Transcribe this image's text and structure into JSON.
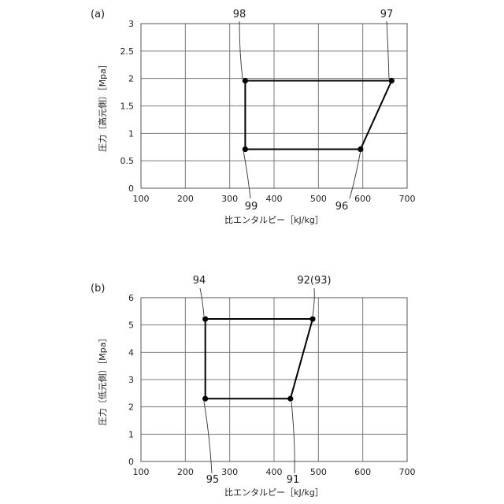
{
  "chart_data": [
    {
      "type": "line",
      "panel_label": "(a)",
      "xlabel": "比エンタルピー［kJ/kg］",
      "ylabel": "圧力〔高元側〕［Mpa］",
      "xlim": [
        100,
        700
      ],
      "ylim": [
        0,
        3
      ],
      "x_ticks": [
        100,
        200,
        300,
        400,
        500,
        600,
        700
      ],
      "y_ticks": [
        0,
        0.5,
        1,
        1.5,
        2,
        2.5,
        3
      ],
      "y_tick_labels": [
        "0",
        "0.5",
        "1",
        "1.5",
        "2",
        "2.5",
        "3"
      ],
      "grid": true,
      "points": [
        {
          "label": "98",
          "x": 335,
          "y": 1.96
        },
        {
          "label": "97",
          "x": 665,
          "y": 1.96
        },
        {
          "label": "96",
          "x": 595,
          "y": 0.71
        },
        {
          "label": "99",
          "x": 335,
          "y": 0.71
        }
      ],
      "closed": true
    },
    {
      "type": "line",
      "panel_label": "(b)",
      "xlabel": "比エンタルピー［kJ/kg］",
      "ylabel": "圧力〔低元側〕［Mpa］",
      "xlim": [
        100,
        700
      ],
      "ylim": [
        0,
        6
      ],
      "x_ticks": [
        100,
        200,
        300,
        400,
        500,
        600,
        700
      ],
      "y_ticks": [
        0,
        1,
        2,
        3,
        4,
        5,
        6
      ],
      "y_tick_labels": [
        "0",
        "1",
        "2",
        "3",
        "4",
        "5",
        "6"
      ],
      "grid": true,
      "points": [
        {
          "label": "94",
          "x": 245,
          "y": 5.22
        },
        {
          "label": "92(93)",
          "x": 487,
          "y": 5.22
        },
        {
          "label": "91",
          "x": 437,
          "y": 2.3
        },
        {
          "label": "95",
          "x": 245,
          "y": 2.3
        }
      ],
      "closed": true
    }
  ]
}
